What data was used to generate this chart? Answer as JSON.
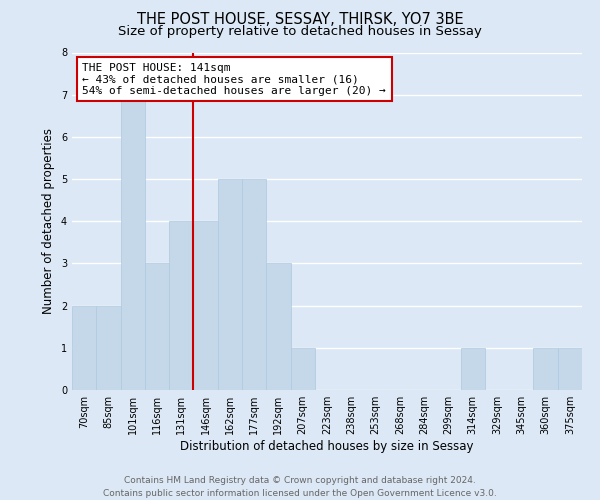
{
  "title": "THE POST HOUSE, SESSAY, THIRSK, YO7 3BE",
  "subtitle": "Size of property relative to detached houses in Sessay",
  "xlabel": "Distribution of detached houses by size in Sessay",
  "ylabel": "Number of detached properties",
  "categories": [
    "70sqm",
    "85sqm",
    "101sqm",
    "116sqm",
    "131sqm",
    "146sqm",
    "162sqm",
    "177sqm",
    "192sqm",
    "207sqm",
    "223sqm",
    "238sqm",
    "253sqm",
    "268sqm",
    "284sqm",
    "299sqm",
    "314sqm",
    "329sqm",
    "345sqm",
    "360sqm",
    "375sqm"
  ],
  "values": [
    2,
    2,
    7,
    3,
    4,
    4,
    5,
    5,
    3,
    1,
    0,
    0,
    0,
    0,
    0,
    0,
    1,
    0,
    0,
    1,
    1
  ],
  "bar_color": "#c5d8ea",
  "bar_edge_color": "#aec9df",
  "ylim": [
    0,
    8
  ],
  "yticks": [
    0,
    1,
    2,
    3,
    4,
    5,
    6,
    7,
    8
  ],
  "ref_line_x": 4.5,
  "annotation_line1": "THE POST HOUSE: 141sqm",
  "annotation_line2": "← 43% of detached houses are smaller (16)",
  "annotation_line3": "54% of semi-detached houses are larger (20) →",
  "annotation_box_facecolor": "#ffffff",
  "annotation_box_edgecolor": "#cc0000",
  "ref_line_color": "#cc0000",
  "footer1": "Contains HM Land Registry data © Crown copyright and database right 2024.",
  "footer2": "Contains public sector information licensed under the Open Government Licence v3.0.",
  "background_color": "#dce8f5",
  "plot_background": "#dce8f5",
  "grid_color": "#ffffff",
  "title_fontsize": 10.5,
  "subtitle_fontsize": 9.5,
  "axis_label_fontsize": 8.5,
  "tick_fontsize": 7,
  "footer_fontsize": 6.5,
  "annotation_fontsize": 8
}
